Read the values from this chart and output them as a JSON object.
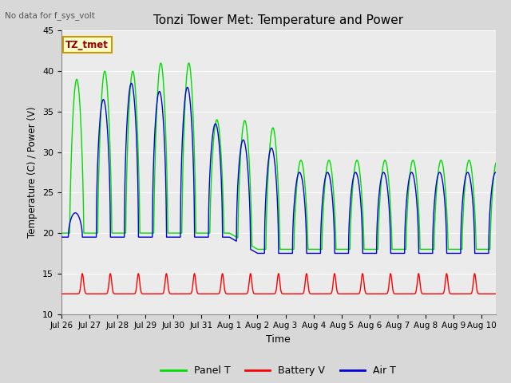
{
  "title": "Tonzi Tower Met: Temperature and Power",
  "top_left_note": "No data for f_sys_volt",
  "xlabel": "Time",
  "ylabel": "Temperature (C) / Power (V)",
  "ylim": [
    10,
    45
  ],
  "yticks": [
    10,
    15,
    20,
    25,
    30,
    35,
    40,
    45
  ],
  "xlim": [
    0,
    15.5
  ],
  "tick_labels": [
    "Jul 26",
    "Jul 27",
    "Jul 28",
    "Jul 29",
    "Jul 30",
    "Jul 31",
    "Aug 1",
    "Aug 2",
    "Aug 3",
    "Aug 4",
    "Aug 5",
    "Aug 6",
    "Aug 7",
    "Aug 8",
    "Aug 9",
    "Aug 10"
  ],
  "tick_positions": [
    0,
    1,
    2,
    3,
    4,
    5,
    6,
    7,
    8,
    9,
    10,
    11,
    12,
    13,
    14,
    15
  ],
  "legend_labels": [
    "Panel T",
    "Battery V",
    "Air T"
  ],
  "legend_colors": [
    "#00dd00",
    "#ff0000",
    "#0000dd"
  ],
  "panel_color": "#00dd00",
  "battery_color": "#ff0000",
  "air_color": "#0000dd",
  "bg_color": "#d8d8d8",
  "plot_bg_color": "#ebebeb",
  "grid_color": "#ffffff",
  "annotation_label": "TZ_tmet",
  "annotation_fg": "#990000",
  "annotation_bg": "#ffffcc",
  "annotation_border": "#cc9900",
  "note_color": "#555555",
  "figsize": [
    6.4,
    4.8
  ],
  "dpi": 100
}
